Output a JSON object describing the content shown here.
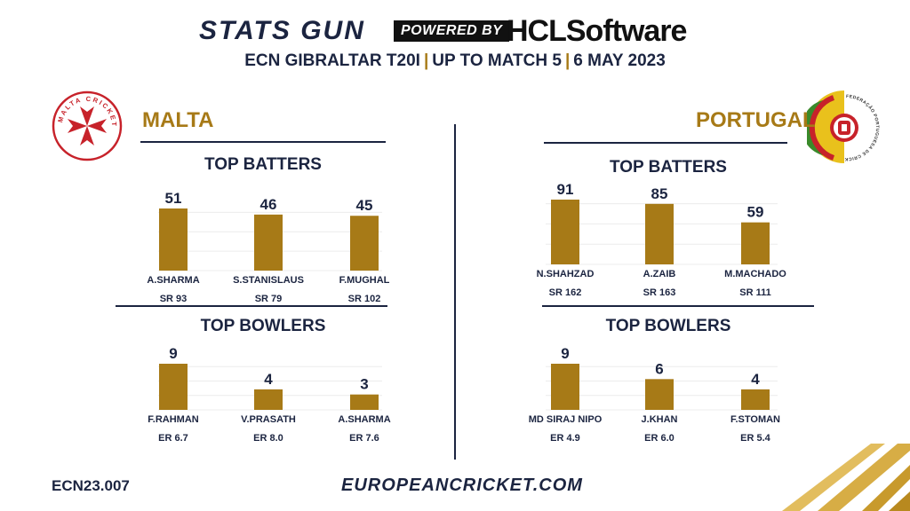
{
  "header": {
    "brand": "STATS GUN",
    "powered_by": "POWERED BY",
    "sponsor": "HCLSoftware",
    "subtitle_parts": [
      "ECN GIBRALTAR T20I",
      "UP TO MATCH 5",
      "6 MAY 2023"
    ],
    "separator": "|"
  },
  "footer": {
    "code": "ECN23.007",
    "url": "EUROPEANCRICKET.COM"
  },
  "colors": {
    "bar": "#a77a17",
    "navy": "#1b2440",
    "accent": "#a77a17"
  },
  "teams": [
    {
      "name": "MALTA",
      "logo_text": "MALTA CRICKET"
    },
    {
      "name": "PORTUGAL",
      "logo_text": "FEDERAÇÃO PORTUGUESA DE CRICKET"
    }
  ],
  "chart_data": [
    {
      "type": "bar",
      "team": "MALTA",
      "title": "TOP BATTERS",
      "categories": [
        "A.SHARMA",
        "S.STANISLAUS",
        "F.MUGHAL"
      ],
      "values": [
        51,
        46,
        45
      ],
      "sublabels": [
        "SR 93",
        "SR 79",
        "SR 102"
      ]
    },
    {
      "type": "bar",
      "team": "MALTA",
      "title": "TOP BOWLERS",
      "categories": [
        "F.RAHMAN",
        "V.PRASATH",
        "A.SHARMA"
      ],
      "values": [
        9,
        4,
        3
      ],
      "sublabels": [
        "ER 6.7",
        "ER 8.0",
        "ER 7.6"
      ]
    },
    {
      "type": "bar",
      "team": "PORTUGAL",
      "title": "TOP BATTERS",
      "categories": [
        "N.SHAHZAD",
        "A.ZAIB",
        "M.MACHADO"
      ],
      "values": [
        91,
        85,
        59
      ],
      "sublabels": [
        "SR 162",
        "SR 163",
        "SR 111"
      ]
    },
    {
      "type": "bar",
      "team": "PORTUGAL",
      "title": "TOP BOWLERS",
      "categories": [
        "MD SIRAJ NIPO",
        "J.KHAN",
        "F.STOMAN"
      ],
      "values": [
        9,
        6,
        4
      ],
      "sublabels": [
        "ER 4.9",
        "ER 6.0",
        "ER 5.4"
      ]
    }
  ]
}
